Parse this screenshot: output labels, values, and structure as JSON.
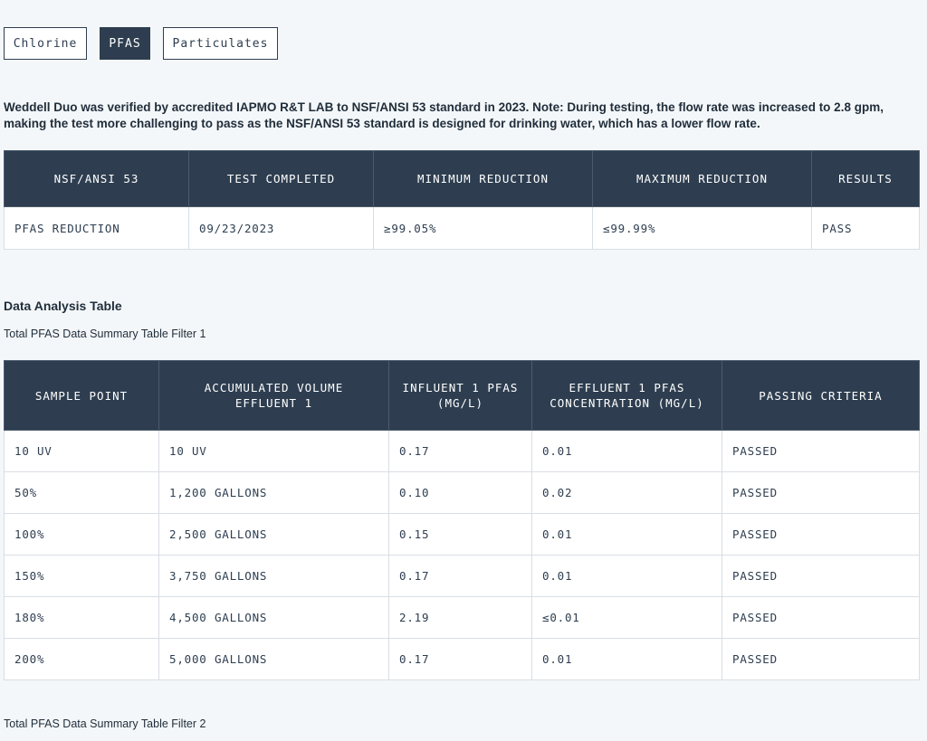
{
  "tabs": [
    {
      "label": "Chlorine",
      "active": false
    },
    {
      "label": "PFAS",
      "active": true
    },
    {
      "label": "Particulates",
      "active": false
    }
  ],
  "intro": "Weddell Duo was verified by accredited IAPMO R&T LAB to NSF/ANSI 53 standard in 2023. Note: During testing, the flow rate was increased to 2.8 gpm, making the test more challenging to pass as the NSF/ANSI 53 standard is designed for drinking water, which has a lower flow rate.",
  "summary_table": {
    "headers": [
      "NSF/ANSI 53",
      "TEST COMPLETED",
      "MINIMUM REDUCTION",
      "MAXIMUM REDUCTION",
      "RESULTS"
    ],
    "rows": [
      [
        "PFAS REDUCTION",
        "09/23/2023",
        "≥99.05%",
        "≤99.99%",
        "PASS"
      ]
    ]
  },
  "analysis": {
    "title": "Data Analysis Table",
    "caption1": "Total PFAS Data Summary Table Filter 1",
    "caption2": "Total PFAS Data Summary Table Filter 2",
    "headers": [
      "SAMPLE POINT",
      "ACCUMULATED VOLUME EFFLUENT 1",
      "INFLUENT 1 PFAS (MG/L)",
      "EFFLUENT 1 PFAS CONCENTRATION (MG/L)",
      "PASSING CRITERIA"
    ],
    "rows": [
      [
        "10 UV",
        "10 UV",
        "0.17",
        "0.01",
        "PASSED"
      ],
      [
        "50%",
        "1,200 GALLONS",
        "0.10",
        "0.02",
        "PASSED"
      ],
      [
        "100%",
        "2,500 GALLONS",
        "0.15",
        "0.01",
        "PASSED"
      ],
      [
        "150%",
        "3,750 GALLONS",
        "0.17",
        "0.01",
        "PASSED"
      ],
      [
        "180%",
        "4,500 GALLONS",
        "2.19",
        "≤0.01",
        "PASSED"
      ],
      [
        "200%",
        "5,000 GALLONS",
        "0.17",
        "0.01",
        "PASSED"
      ]
    ]
  }
}
